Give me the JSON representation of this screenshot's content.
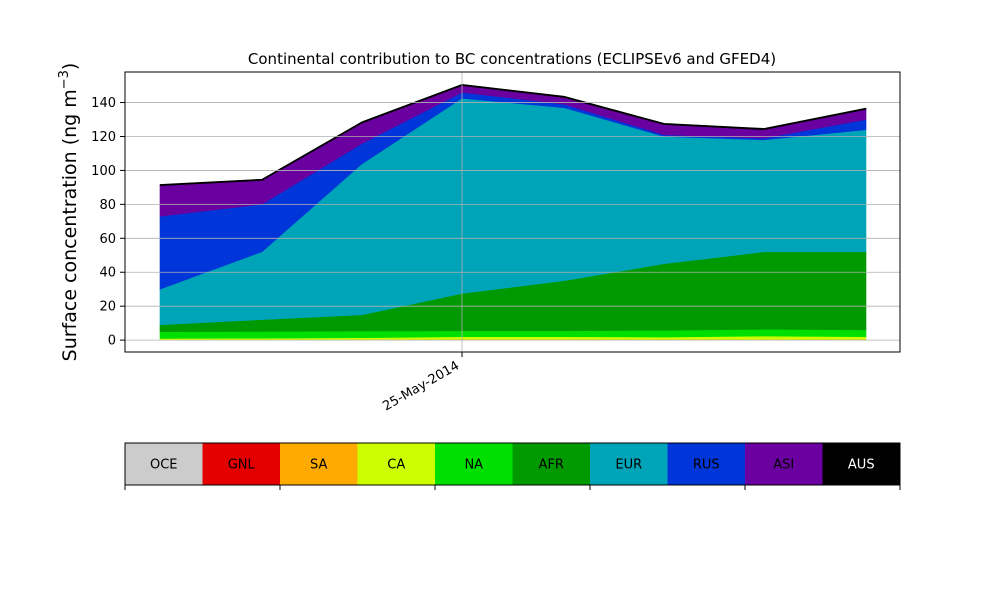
{
  "chart_data": {
    "type": "area",
    "stacked": true,
    "title": "Continental contribution to BC concentrations (ECLIPSEv6 and GFED4)",
    "ylabel_main": "Surface concentration (ng m",
    "ylabel_exp": "−3",
    "ylabel_close": ")",
    "ylim": [
      -7,
      158
    ],
    "yticks": [
      0,
      20,
      40,
      60,
      80,
      100,
      120,
      140
    ],
    "ytick_labels": [
      "0",
      "20",
      "40",
      "60",
      "80",
      "100",
      "120",
      "140"
    ],
    "xtick_label": "25-May-2014",
    "grid": true,
    "legend_position": "bottom",
    "x": [
      0,
      1,
      2,
      3,
      4,
      5,
      6,
      7
    ],
    "series": [
      {
        "name": "OCE",
        "color": "#cccccc",
        "values": [
          0.0,
          0.0,
          0.0,
          0.0,
          0.0,
          0.0,
          0.0,
          0.0
        ]
      },
      {
        "name": "GNL",
        "color": "#e50000",
        "values": [
          0.0,
          0.0,
          0.0,
          0.0,
          0.0,
          0.0,
          0.0,
          0.0
        ]
      },
      {
        "name": "SA",
        "color": "#ffaa00",
        "values": [
          0.2,
          0.2,
          0.3,
          0.4,
          0.4,
          0.4,
          0.4,
          0.4
        ]
      },
      {
        "name": "CA",
        "color": "#ccff00",
        "values": [
          0.8,
          0.9,
          1.1,
          1.6,
          1.6,
          1.4,
          2.0,
          1.6
        ]
      },
      {
        "name": "NA",
        "color": "#00e000",
        "values": [
          4.0,
          4.0,
          4.0,
          3.5,
          3.5,
          4.0,
          4.0,
          4.0
        ]
      },
      {
        "name": "AFR",
        "color": "#009a00",
        "values": [
          4.0,
          7.0,
          9.5,
          22.0,
          29.5,
          39.2,
          45.6,
          46.0
        ]
      },
      {
        "name": "EUR",
        "color": "#00a4b9",
        "values": [
          21.0,
          40.0,
          89.0,
          115.0,
          102.0,
          75.0,
          66.0,
          72.0
        ]
      },
      {
        "name": "RUS",
        "color": "#0036d9",
        "values": [
          43.0,
          28.0,
          12.0,
          3.5,
          2.0,
          1.0,
          1.0,
          6.0
        ]
      },
      {
        "name": "ASI",
        "color": "#6a00a0",
        "values": [
          18.0,
          14.0,
          12.0,
          4.0,
          4.0,
          6.0,
          5.0,
          6.0
        ]
      },
      {
        "name": "AUS",
        "color": "#000000",
        "values": [
          0.5,
          0.5,
          0.5,
          0.5,
          0.5,
          0.5,
          0.5,
          0.5
        ]
      }
    ]
  }
}
